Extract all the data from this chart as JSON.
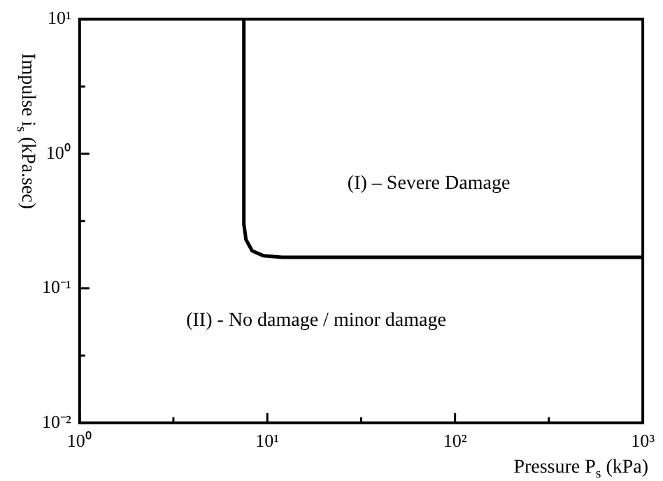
{
  "chart_data": {
    "type": "line",
    "xlabel": "Pressure P$_{s}$ (kPa)",
    "ylabel": "Impulse i$_{s}$ (kPa.sec)",
    "log": "xy",
    "grid": false,
    "legend": false,
    "marker": "none",
    "line_style": "solid",
    "xlim": [
      1,
      1000
    ],
    "ylim": [
      0.01,
      10
    ],
    "xticks": [
      {
        "value": 1,
        "label": "10⁰"
      },
      {
        "value": 3.16,
        "label": null
      },
      {
        "value": 10,
        "label": "10¹"
      },
      {
        "value": 31.6,
        "label": null
      },
      {
        "value": 100,
        "label": "10²"
      },
      {
        "value": 316,
        "label": null
      },
      {
        "value": 1000,
        "label": "10³"
      }
    ],
    "yticks": [
      {
        "value": 0.01,
        "label": "10⁻²"
      },
      {
        "value": 0.0316,
        "label": null
      },
      {
        "value": 0.1,
        "label": "10⁻¹"
      },
      {
        "value": 0.316,
        "label": null
      },
      {
        "value": 1,
        "label": "10⁰"
      },
      {
        "value": 3.16,
        "label": null
      },
      {
        "value": 10,
        "label": "10¹"
      }
    ],
    "series": [
      {
        "color": "#000000",
        "x": [
          7.5,
          7.5,
          7.7,
          8.3,
          9.5,
          12,
          1000
        ],
        "values": [
          10,
          0.3,
          0.23,
          0.19,
          0.175,
          0.17,
          0.17
        ]
      }
    ],
    "annotations": [
      "(I) – Severe Damage",
      "(II) - No damage / minor damage"
    ]
  }
}
